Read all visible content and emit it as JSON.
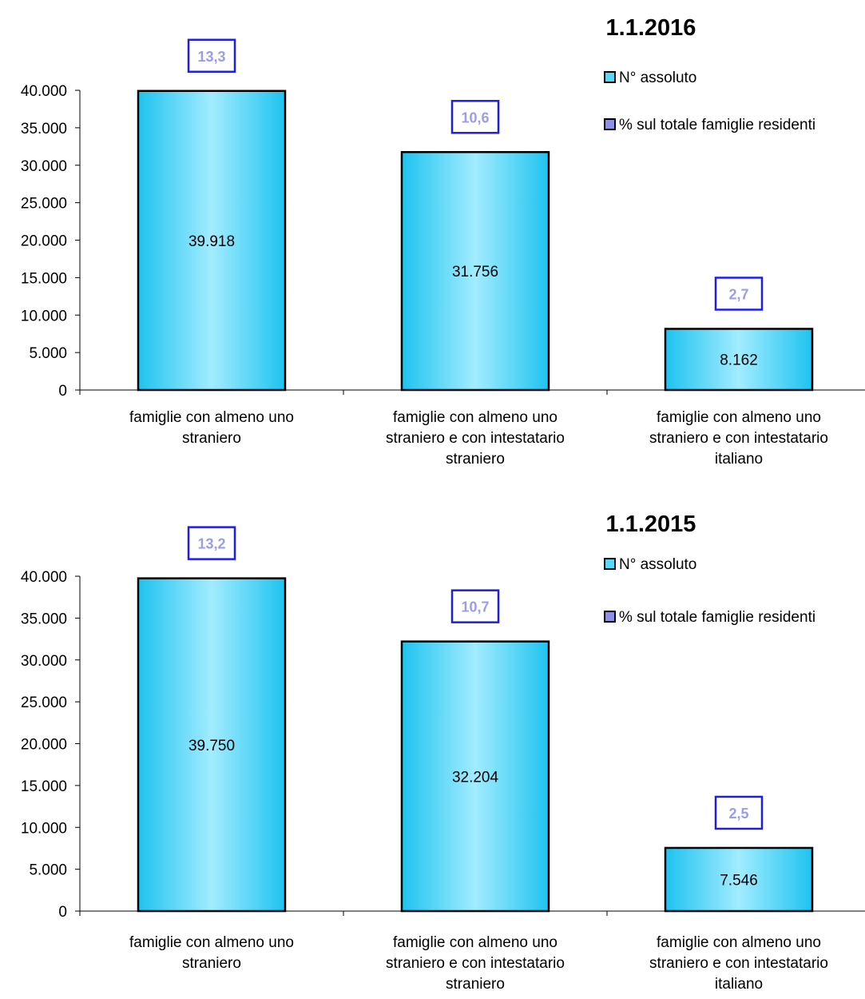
{
  "colors": {
    "bar_edge": "#1ec3f0",
    "bar_center": "#a2ecff",
    "bar_stroke": "#000000",
    "pct_box_stroke": "#1e1ee6",
    "pct_text": "#9c9cee",
    "legend_count_fill": "#5bd6f6",
    "legend_pct_fill": "#8f8fe6"
  },
  "chart_data": [
    {
      "type": "bar",
      "title": "1.1.2016",
      "categories": [
        [
          "famiglie con almeno uno",
          "straniero"
        ],
        [
          "famiglie con almeno uno",
          "straniero e  con intestatario",
          "straniero"
        ],
        [
          "famiglie con almeno uno",
          "straniero e con intestatario",
          "italiano"
        ]
      ],
      "series": [
        {
          "name": "N° assoluto",
          "values": [
            39918,
            31756,
            8162
          ],
          "labels": [
            "39.918",
            "31.756",
            "8.162"
          ]
        },
        {
          "name": "% sul totale famiglie residenti",
          "values": [
            13.3,
            10.6,
            2.7
          ],
          "labels": [
            "13,3",
            "10,6",
            "2,7"
          ]
        }
      ],
      "ylim": [
        0,
        40000
      ],
      "yticks": [
        0,
        5000,
        10000,
        15000,
        20000,
        25000,
        30000,
        35000,
        40000
      ],
      "ytick_labels": [
        "0",
        "5.000",
        "10.000",
        "15.000",
        "20.000",
        "25.000",
        "30.000",
        "35.000",
        "40.000"
      ],
      "grid": false,
      "legend_position": "top-right"
    },
    {
      "type": "bar",
      "title": "1.1.2015",
      "categories": [
        [
          "famiglie con almeno uno",
          "straniero"
        ],
        [
          "famiglie con almeno uno",
          "straniero e  con intestatario",
          "straniero"
        ],
        [
          "famiglie con almeno uno",
          "straniero e con intestatario",
          "italiano"
        ]
      ],
      "series": [
        {
          "name": "N° assoluto",
          "values": [
            39750,
            32204,
            7546
          ],
          "labels": [
            "39.750",
            "32.204",
            "7.546"
          ]
        },
        {
          "name": "% sul totale famiglie residenti",
          "values": [
            13.2,
            10.7,
            2.5
          ],
          "labels": [
            "13,2",
            "10,7",
            "2,5"
          ]
        }
      ],
      "ylim": [
        0,
        40000
      ],
      "yticks": [
        0,
        5000,
        10000,
        15000,
        20000,
        25000,
        30000,
        35000,
        40000
      ],
      "ytick_labels": [
        "0",
        "5.000",
        "10.000",
        "15.000",
        "20.000",
        "25.000",
        "30.000",
        "35.000",
        "40.000"
      ],
      "grid": false,
      "legend_position": "top-right"
    }
  ]
}
